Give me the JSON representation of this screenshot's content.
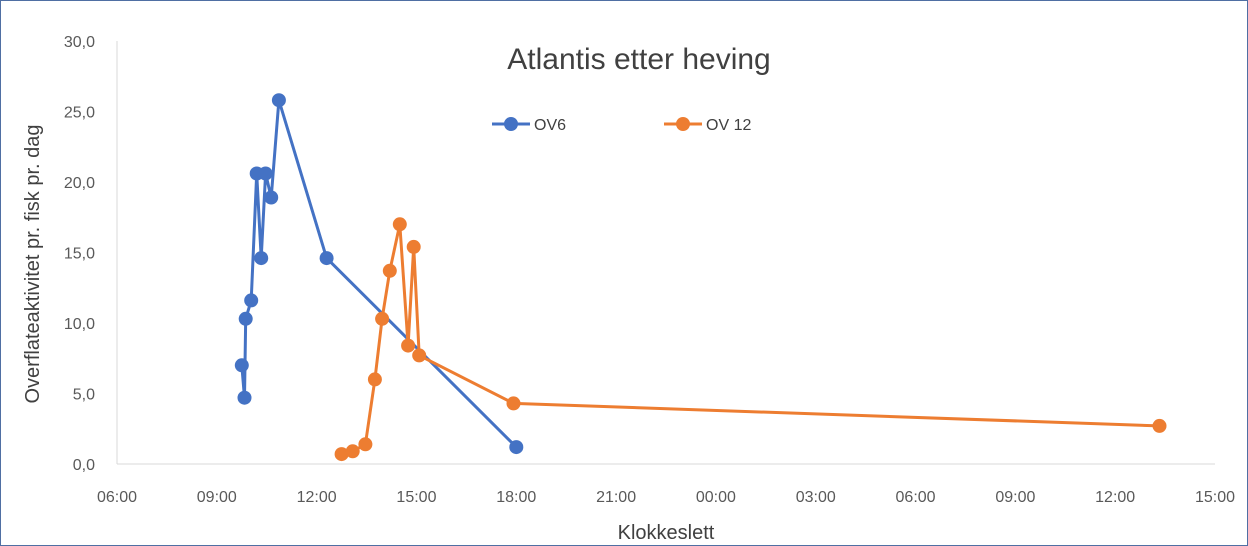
{
  "chart_data": {
    "type": "line",
    "title": "Atlantis etter heving",
    "xlabel": "Klokkeslett",
    "ylabel": "Overflateaktivitet pr. fisk pr. dag",
    "x_tick_labels": [
      "06:00",
      "09:00",
      "12:00",
      "15:00",
      "18:00",
      "21:00",
      "00:00",
      "03:00",
      "06:00",
      "09:00",
      "12:00",
      "15:00"
    ],
    "y_tick_labels": [
      "0,0",
      "5,0",
      "10,0",
      "15,0",
      "20,0",
      "25,0",
      "30,0"
    ],
    "xlim": [
      "Day 1 06:00",
      "Day 2 15:00"
    ],
    "ylim": [
      0,
      30
    ],
    "legend_position": "top-center",
    "grid": false,
    "series": [
      {
        "name": "OV6",
        "color": "#4472c4",
        "points": [
          {
            "x": "Day 1 09:45",
            "y": 7.0
          },
          {
            "x": "Day 1 09:50",
            "y": 4.7
          },
          {
            "x": "Day 1 09:52",
            "y": 10.3
          },
          {
            "x": "Day 1 10:02",
            "y": 11.6
          },
          {
            "x": "Day 1 10:12",
            "y": 20.6
          },
          {
            "x": "Day 1 10:20",
            "y": 14.6
          },
          {
            "x": "Day 1 10:28",
            "y": 20.6
          },
          {
            "x": "Day 1 10:38",
            "y": 18.9
          },
          {
            "x": "Day 1 10:52",
            "y": 25.8
          },
          {
            "x": "Day 1 12:18",
            "y": 14.6
          },
          {
            "x": "Day 1 18:00",
            "y": 1.2
          }
        ]
      },
      {
        "name": "OV 12",
        "color": "#ed7d31",
        "points": [
          {
            "x": "Day 1 12:45",
            "y": 0.7
          },
          {
            "x": "Day 1 13:05",
            "y": 0.9
          },
          {
            "x": "Day 1 13:28",
            "y": 1.4
          },
          {
            "x": "Day 1 13:45",
            "y": 6.0
          },
          {
            "x": "Day 1 13:58",
            "y": 10.3
          },
          {
            "x": "Day 1 14:12",
            "y": 13.7
          },
          {
            "x": "Day 1 14:30",
            "y": 17.0
          },
          {
            "x": "Day 1 14:45",
            "y": 8.4
          },
          {
            "x": "Day 1 14:55",
            "y": 15.4
          },
          {
            "x": "Day 1 15:05",
            "y": 7.7
          },
          {
            "x": "Day 1 17:55",
            "y": 4.3
          },
          {
            "x": "Day 2 13:20",
            "y": 2.7
          }
        ]
      }
    ]
  }
}
